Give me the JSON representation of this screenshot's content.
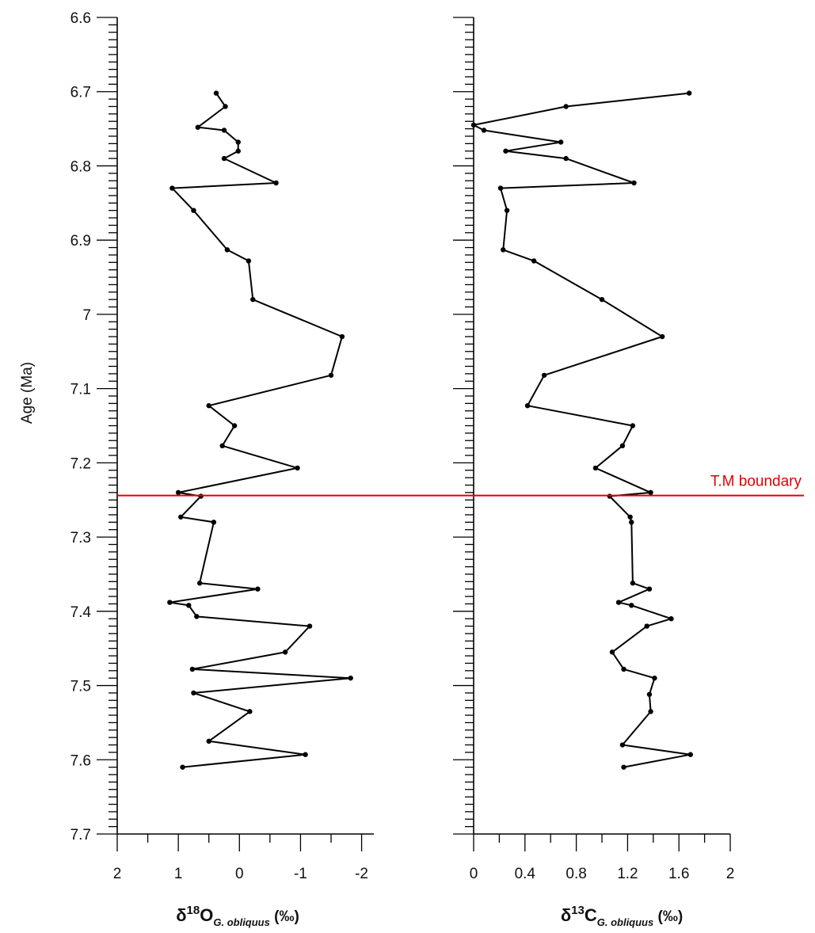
{
  "chart_data": {
    "type": "line",
    "ylabel": "Age (Ma)",
    "ylim": [
      6.6,
      7.7
    ],
    "y_ticks": [
      "6.6",
      "6.7",
      "6.8",
      "6.9",
      "7",
      "7.1",
      "7.2",
      "7.3",
      "7.4",
      "7.5",
      "7.6",
      "7.7"
    ],
    "y_reversed": true,
    "grid": false,
    "panels": [
      {
        "id": "d18O",
        "xlabel_main": "δ",
        "xlabel_sup": "18",
        "xlabel_element": "O",
        "xlabel_sub": "G. obliquus",
        "xlabel_unit": " (‰)",
        "xlim": [
          2,
          -2.2
        ],
        "x_reversed": true,
        "x_ticks": [
          {
            "value": 2,
            "label": "2"
          },
          {
            "value": 1,
            "label": "1"
          },
          {
            "value": 0,
            "label": "0"
          },
          {
            "value": -1,
            "label": "-1"
          },
          {
            "value": -2,
            "label": "-2"
          }
        ],
        "points": [
          [
            0.38,
            6.702
          ],
          [
            0.23,
            6.72
          ],
          [
            0.68,
            6.748
          ],
          [
            0.25,
            6.752
          ],
          [
            0.02,
            6.768
          ],
          [
            0.02,
            6.78
          ],
          [
            0.25,
            6.79
          ],
          [
            -0.6,
            6.823
          ],
          [
            1.1,
            6.83
          ],
          [
            0.75,
            6.86
          ],
          [
            0.2,
            6.913
          ],
          [
            -0.15,
            6.928
          ],
          [
            -0.22,
            6.98
          ],
          [
            -1.68,
            7.03
          ],
          [
            -1.5,
            7.082
          ],
          [
            0.5,
            7.123
          ],
          [
            0.08,
            7.15
          ],
          [
            0.28,
            7.177
          ],
          [
            -0.95,
            7.207
          ],
          [
            1.0,
            7.24
          ],
          [
            0.63,
            7.245
          ],
          [
            0.96,
            7.273
          ],
          [
            0.42,
            7.28
          ],
          [
            0.65,
            7.362
          ],
          [
            -0.3,
            7.37
          ],
          [
            1.14,
            7.388
          ],
          [
            0.83,
            7.392
          ],
          [
            0.7,
            7.407
          ],
          [
            -1.15,
            7.42
          ],
          [
            -0.75,
            7.455
          ],
          [
            0.77,
            7.478
          ],
          [
            -1.82,
            7.49
          ],
          [
            0.75,
            7.51
          ],
          [
            -0.17,
            7.535
          ],
          [
            0.5,
            7.575
          ],
          [
            -1.08,
            7.593
          ],
          [
            0.93,
            7.61
          ]
        ]
      },
      {
        "id": "d13C",
        "xlabel_main": "δ",
        "xlabel_sup": "13",
        "xlabel_element": "C",
        "xlabel_sub": "G. obliquus",
        "xlabel_unit": " (‰)",
        "xlim": [
          0,
          2
        ],
        "x_reversed": false,
        "x_ticks": [
          {
            "value": 0,
            "label": "0"
          },
          {
            "value": 0.4,
            "label": "0.4"
          },
          {
            "value": 0.8,
            "label": "0.8"
          },
          {
            "value": 1.2,
            "label": "1.2"
          },
          {
            "value": 1.6,
            "label": "1.6"
          },
          {
            "value": 2,
            "label": "2"
          }
        ],
        "points": [
          [
            1.68,
            6.702
          ],
          [
            0.72,
            6.72
          ],
          [
            0.0,
            6.745
          ],
          [
            0.08,
            6.752
          ],
          [
            0.68,
            6.768
          ],
          [
            0.25,
            6.78
          ],
          [
            0.72,
            6.79
          ],
          [
            1.25,
            6.823
          ],
          [
            0.21,
            6.83
          ],
          [
            0.26,
            6.86
          ],
          [
            0.23,
            6.913
          ],
          [
            0.47,
            6.928
          ],
          [
            1.0,
            6.98
          ],
          [
            1.47,
            7.03
          ],
          [
            0.55,
            7.082
          ],
          [
            0.42,
            7.123
          ],
          [
            1.24,
            7.15
          ],
          [
            1.16,
            7.177
          ],
          [
            0.95,
            7.207
          ],
          [
            1.38,
            7.24
          ],
          [
            1.06,
            7.245
          ],
          [
            1.22,
            7.273
          ],
          [
            1.23,
            7.28
          ],
          [
            1.24,
            7.362
          ],
          [
            1.37,
            7.37
          ],
          [
            1.13,
            7.388
          ],
          [
            1.23,
            7.392
          ],
          [
            1.54,
            7.41
          ],
          [
            1.35,
            7.42
          ],
          [
            1.08,
            7.455
          ],
          [
            1.17,
            7.478
          ],
          [
            1.41,
            7.49
          ],
          [
            1.37,
            7.512
          ],
          [
            1.38,
            7.535
          ],
          [
            1.16,
            7.58
          ],
          [
            1.69,
            7.593
          ],
          [
            1.17,
            7.61
          ]
        ]
      }
    ],
    "annotations": [
      {
        "type": "hline",
        "y": 7.244,
        "color": "#e00000",
        "label": "T.M boundary"
      }
    ]
  }
}
